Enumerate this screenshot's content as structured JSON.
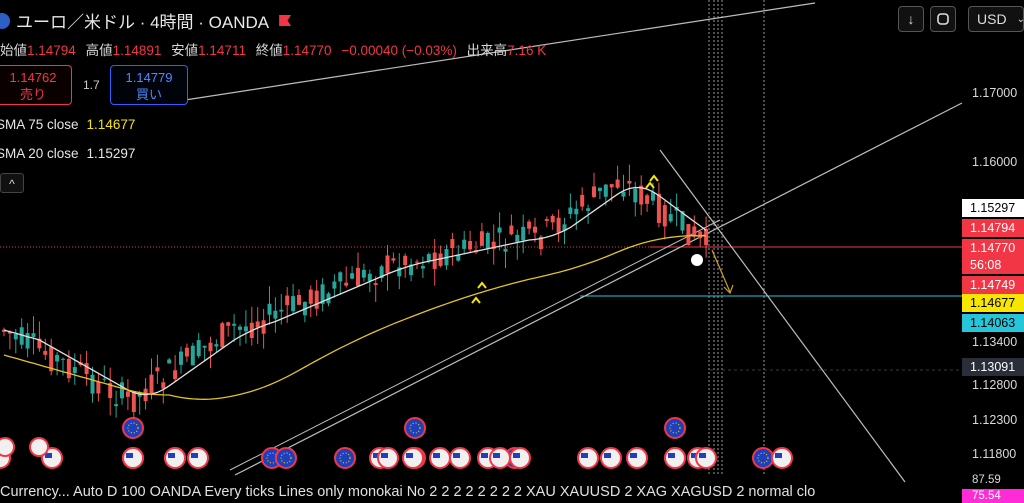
{
  "header": {
    "title": "ユーロ／米ドル · 4時間 · OANDA",
    "ohlc": [
      {
        "label": "始値",
        "value": "1.14794"
      },
      {
        "label": "高値",
        "value": "1.14891"
      },
      {
        "label": "安値",
        "value": "1.14711"
      },
      {
        "label": "終値",
        "value": "1.14770"
      }
    ],
    "change": "−0.00040 (−0.03%)",
    "volume_label": "出来高",
    "volume_value": "7.16 K"
  },
  "toolbar": {
    "download_icon": "arrow-down-icon",
    "fullscreen_icon": "fullscreen-icon",
    "currency_label": "USD",
    "currency_icon": "chevron-down-icon"
  },
  "trade": {
    "sell_price": "1.14762",
    "sell_label": "売り",
    "spread": "1.7",
    "buy_price": "1.14779",
    "buy_label": "買い"
  },
  "indicators": {
    "sma75_label": "SMA 75 close",
    "sma75_value": "1.14677",
    "sma20_label": "SMA 20 close",
    "sma20_value": "1.15297",
    "collapse_icon": "chevron-up-icon"
  },
  "price_axis": {
    "ticks": [
      "1.17000",
      "1.16000",
      "1.13400",
      "1.12800",
      "1.12300",
      "1.11800"
    ],
    "tags": [
      {
        "text": "1.15297",
        "bg": "#ffffff",
        "fg": "#000000"
      },
      {
        "text": "1.14794",
        "bg": "#f23645",
        "fg": "#ffffff"
      },
      {
        "text": "1.14770",
        "bg": "#f23645",
        "fg": "#ffffff"
      },
      {
        "text": "56:08",
        "bg": "#f23645",
        "fg": "#ffffff"
      },
      {
        "text": "1.14749",
        "bg": "#f23645",
        "fg": "#ffffff"
      },
      {
        "text": "1.14677",
        "bg": "#f7e600",
        "fg": "#000000"
      },
      {
        "text": "1.14063",
        "bg": "#26c6da",
        "fg": "#000000"
      },
      {
        "text": "1.13091",
        "bg": "#2a2e39",
        "fg": "#ffffff"
      }
    ]
  },
  "sub_axis": {
    "tags": [
      {
        "text": "87.59",
        "bg": "#000000",
        "fg": "#d9d9d9"
      },
      {
        "text": "75.54",
        "bg": "#ff2bd6",
        "fg": "#ffffff"
      }
    ]
  },
  "status_bar": {
    "text": "Currency... Auto D 100 OANDA Every ticks Lines only monokai No 2 2 2 2 2 2 2 2 XAU XAUUSD 2 XAG XAGUSD 2 normal clo"
  },
  "colors": {
    "bull": "#26a69a",
    "bear": "#ef5350",
    "sma20": "#e0e0e0",
    "sma75": "#e3c227",
    "accent_red": "#f23645",
    "accent_blue": "#2962ff"
  }
}
